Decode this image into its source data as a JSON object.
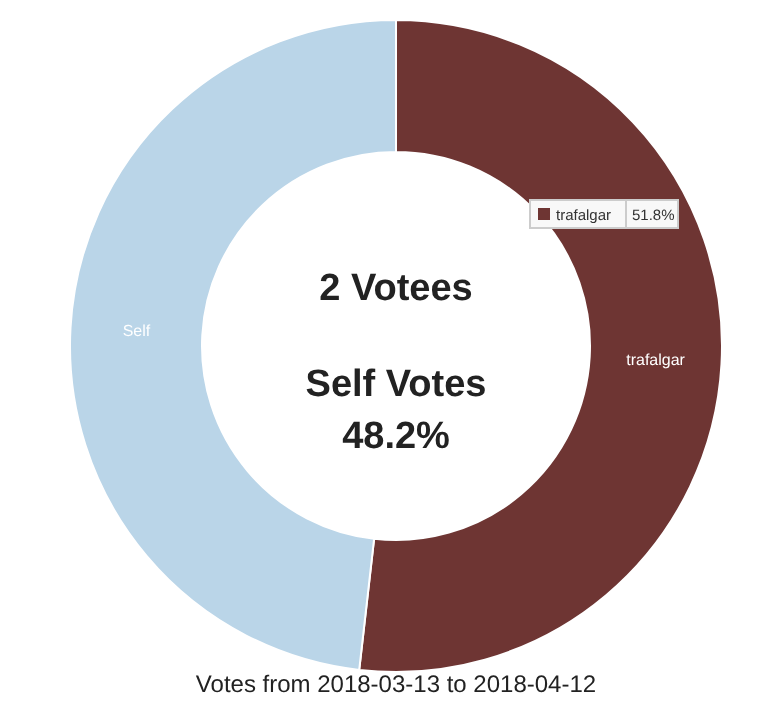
{
  "chart_data": {
    "type": "donut",
    "title": "Votes from 2018-03-13 to 2018-04-12",
    "categories": [
      "trafalgar",
      "Self"
    ],
    "values": [
      51.8,
      48.2
    ],
    "colors": [
      "#6e3533",
      "#bad5e8"
    ],
    "value_labels": [
      "51.8%",
      null
    ],
    "annotations": [
      "2 Votees",
      "Self Votes",
      "48.2%"
    ]
  }
}
